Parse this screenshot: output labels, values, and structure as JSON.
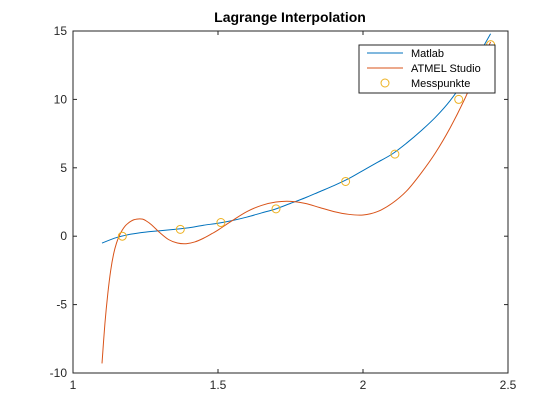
{
  "chart_data": {
    "type": "line",
    "title": "Lagrange Interpolation",
    "xlabel": "",
    "ylabel": "",
    "xlim": [
      1,
      2.5
    ],
    "ylim": [
      -10,
      15
    ],
    "x_ticks": [
      1,
      1.5,
      2,
      2.5
    ],
    "x_tick_labels": [
      "1",
      "1.5",
      "2",
      "2.5"
    ],
    "y_ticks": [
      -10,
      -5,
      0,
      5,
      10,
      15
    ],
    "y_tick_labels": [
      "-10",
      "-5",
      "0",
      "5",
      "10",
      "15"
    ],
    "grid": false,
    "legend_position": "top-right",
    "series": [
      {
        "name": "Matlab",
        "style": "line",
        "color": "#0072BD",
        "x": [
          1.1,
          1.15,
          1.2,
          1.25,
          1.3,
          1.35,
          1.4,
          1.45,
          1.5,
          1.55,
          1.6,
          1.65,
          1.7,
          1.75,
          1.8,
          1.85,
          1.9,
          1.95,
          2.0,
          2.05,
          2.1,
          2.15,
          2.2,
          2.25,
          2.3,
          2.35,
          2.4,
          2.44
        ],
        "y": [
          -0.5,
          -0.1,
          0.15,
          0.3,
          0.4,
          0.5,
          0.62,
          0.8,
          0.95,
          1.15,
          1.4,
          1.7,
          2.0,
          2.4,
          2.8,
          3.25,
          3.7,
          4.2,
          4.8,
          5.4,
          6.0,
          6.8,
          7.7,
          8.7,
          9.9,
          11.4,
          13.3,
          14.8
        ]
      },
      {
        "name": "ATMEL Studio",
        "style": "line",
        "color": "#D95319",
        "x": [
          1.1,
          1.11,
          1.12,
          1.13,
          1.14,
          1.15,
          1.16,
          1.17,
          1.18,
          1.19,
          1.2,
          1.21,
          1.22,
          1.23,
          1.24,
          1.25,
          1.27,
          1.3,
          1.33,
          1.36,
          1.39,
          1.42,
          1.45,
          1.48,
          1.5,
          1.55,
          1.6,
          1.65,
          1.7,
          1.75,
          1.8,
          1.85,
          1.9,
          1.95,
          2.0,
          2.05,
          2.1,
          2.15,
          2.2,
          2.25,
          2.3,
          2.35,
          2.4,
          2.44
        ],
        "y": [
          -9.3,
          -6.4,
          -4.2,
          -2.5,
          -1.3,
          -0.5,
          0.05,
          0.45,
          0.75,
          0.95,
          1.1,
          1.2,
          1.25,
          1.27,
          1.25,
          1.15,
          0.85,
          0.25,
          -0.25,
          -0.5,
          -0.55,
          -0.42,
          -0.15,
          0.2,
          0.45,
          1.15,
          1.8,
          2.25,
          2.5,
          2.55,
          2.4,
          2.1,
          1.8,
          1.6,
          1.55,
          1.8,
          2.4,
          3.3,
          4.6,
          6.1,
          7.9,
          10.0,
          12.4,
          14.2
        ]
      },
      {
        "name": "Messpunkte",
        "style": "markers",
        "color": "#EDB120",
        "x": [
          1.17,
          1.37,
          1.51,
          1.7,
          1.94,
          2.11,
          2.33,
          2.44
        ],
        "y": [
          0.0,
          0.5,
          1.0,
          2.0,
          4.0,
          6.0,
          10.0,
          14.0
        ]
      }
    ]
  }
}
